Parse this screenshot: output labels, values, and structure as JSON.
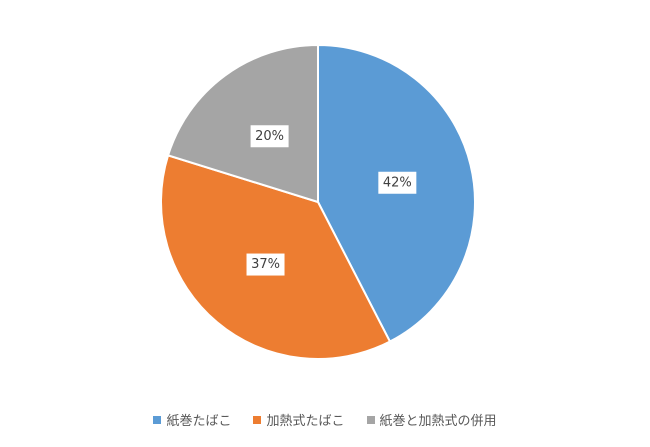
{
  "chart_data": {
    "type": "pie",
    "categories": [
      "紙巻たばこ",
      "加熱式たばこ",
      "紙巻と加熱式の併用"
    ],
    "values": [
      42,
      37,
      20
    ],
    "value_labels": [
      "42%",
      "37%",
      "20%"
    ],
    "colors": [
      "#5b9bd5",
      "#ed7d31",
      "#a5a5a5"
    ],
    "legend": "bottom"
  }
}
